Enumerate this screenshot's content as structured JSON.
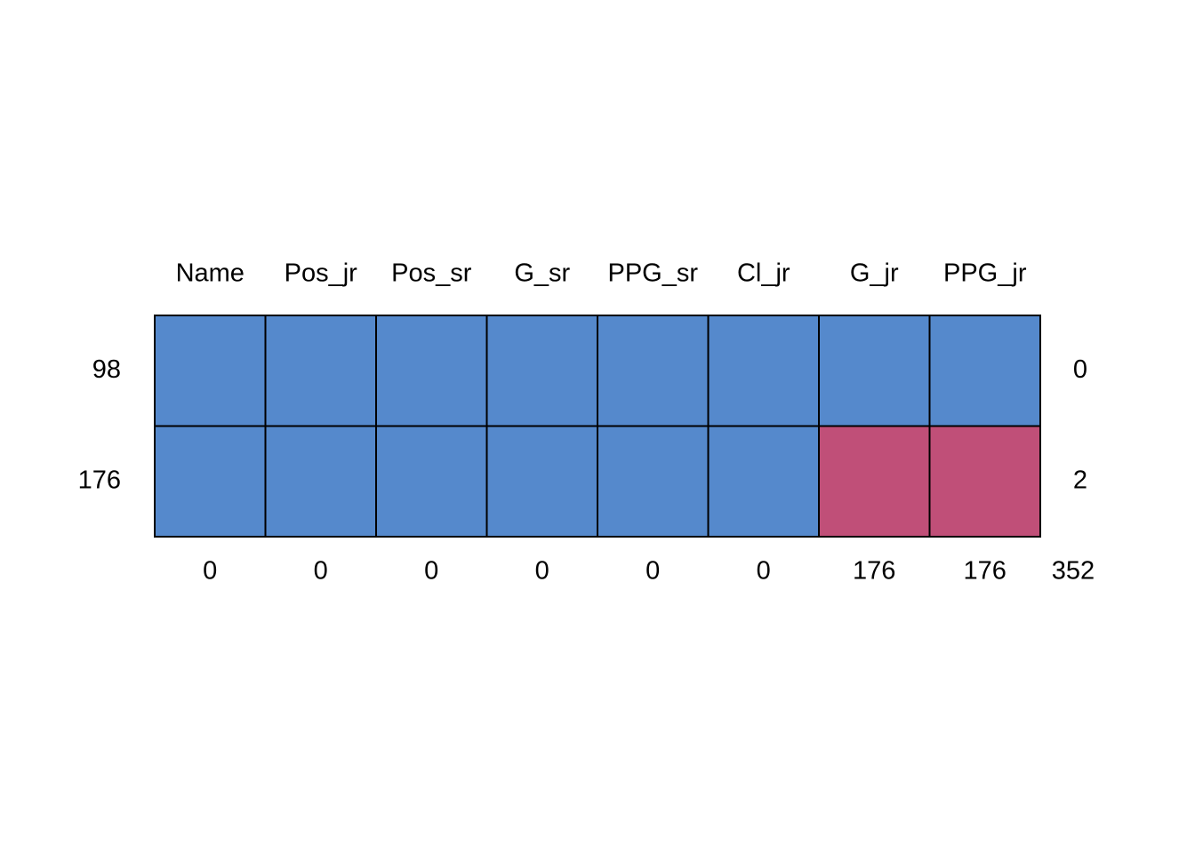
{
  "columns": [
    "Name",
    "Pos_jr",
    "Pos_sr",
    "G_sr",
    "PPG_sr",
    "Cl_jr",
    "G_jr",
    "PPG_jr"
  ],
  "rows": [
    {
      "count": 98,
      "pattern": [
        1,
        1,
        1,
        1,
        1,
        1,
        1,
        1
      ],
      "missing": 0
    },
    {
      "count": 176,
      "pattern": [
        1,
        1,
        1,
        1,
        1,
        1,
        0,
        0
      ],
      "missing": 2
    }
  ],
  "column_missing": [
    0,
    0,
    0,
    0,
    0,
    0,
    176,
    176
  ],
  "total_missing": 352,
  "colors": {
    "observed": "#5589cc",
    "missing": "#c04f78"
  }
}
